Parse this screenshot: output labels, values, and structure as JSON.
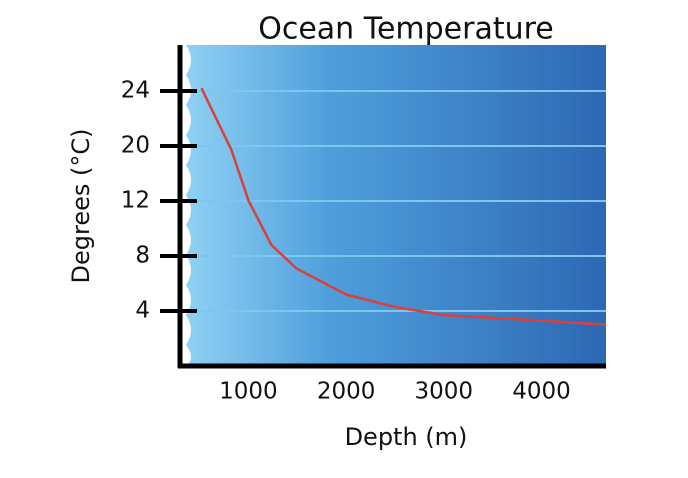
{
  "chart_data": {
    "type": "line",
    "title": "Ocean Temperature",
    "x_label": "Depth (m)",
    "y_label": "Degrees (°C)",
    "x": [
      520,
      827,
      1000,
      1235,
      1490,
      2000,
      2500,
      3000,
      4000,
      4660
    ],
    "values": [
      24.2,
      19.4,
      12.1,
      8.8,
      7.1,
      5.2,
      4.3,
      3.7,
      3.3,
      3.0
    ],
    "color": "#d9413a",
    "xlim": [
      300,
      4660
    ],
    "xticks": [
      1000,
      2000,
      3000,
      4000
    ],
    "ylim": [
      0,
      27.3
    ],
    "yticks": [
      4,
      8,
      12,
      20,
      24
    ],
    "grid": true
  }
}
